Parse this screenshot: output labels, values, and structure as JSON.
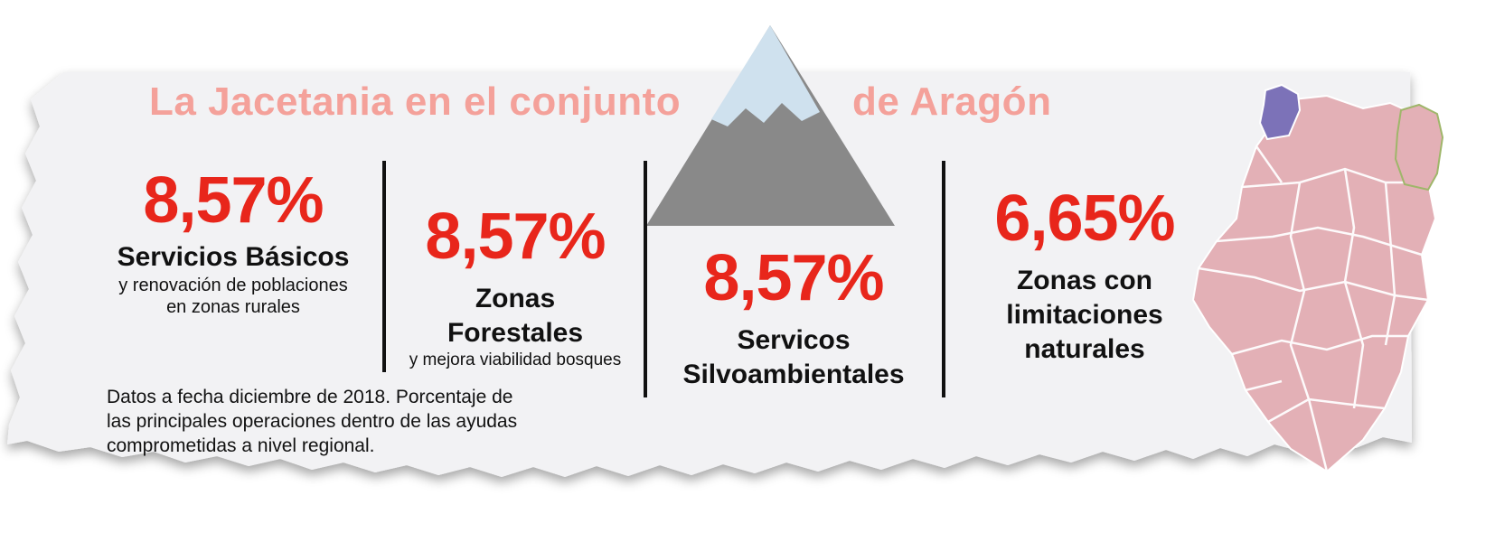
{
  "header": {
    "title_part1": "La Jacetania en el conjunto",
    "title_part2": "de Aragón",
    "title_color": "#f4a19a"
  },
  "stats": [
    {
      "percent": "8,57%",
      "label": "Servicios Básicos",
      "sub1": "y renovación de poblaciones",
      "sub2": "en zonas rurales"
    },
    {
      "percent": "8,57%",
      "label1": "Zonas",
      "label2": "Forestales",
      "sub": "y mejora viabilidad bosques"
    },
    {
      "percent": "8,57%",
      "label1": "Servicos",
      "label2": "Silvoambientales"
    },
    {
      "percent": "6,65%",
      "label1": "Zonas con",
      "label2": "limitaciones",
      "label3": "naturales"
    }
  ],
  "note": {
    "line1": "Datos a fecha diciembre de 2018. Porcentaje de",
    "line2": "las principales operaciones dentro de las ayudas",
    "line3": "comprometidas a nivel regional."
  },
  "colors": {
    "accent": "#e8261b",
    "map_fill": "#e3b0b6",
    "map_highlight": "#7c72b8",
    "map_neighbor_border": "#9fb66a",
    "mountain_rock": "#898989",
    "mountain_snow": "#cfe1ee"
  },
  "icons": [
    "mountain-icon",
    "aragon-map-icon"
  ]
}
